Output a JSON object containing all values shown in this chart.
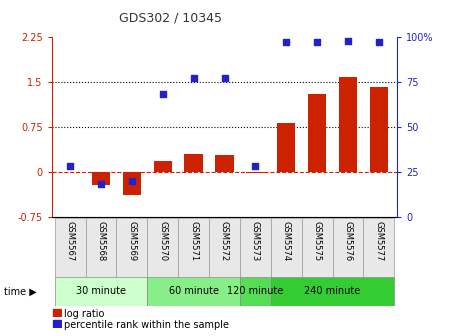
{
  "title": "GDS302 / 10345",
  "samples": [
    "GSM5567",
    "GSM5568",
    "GSM5569",
    "GSM5570",
    "GSM5571",
    "GSM5572",
    "GSM5573",
    "GSM5574",
    "GSM5575",
    "GSM5576",
    "GSM5577"
  ],
  "log_ratio": [
    0.0,
    -0.22,
    -0.38,
    0.18,
    0.3,
    0.28,
    -0.02,
    0.82,
    1.3,
    1.58,
    1.42
  ],
  "percentile": [
    28,
    18,
    20,
    68,
    77,
    77,
    28,
    97,
    97,
    98,
    97
  ],
  "ylim_left": [
    -0.75,
    2.25
  ],
  "ylim_right": [
    0,
    100
  ],
  "yticks_left": [
    -0.75,
    0.0,
    0.75,
    1.5,
    2.25
  ],
  "yticks_right": [
    0,
    25,
    50,
    75,
    100
  ],
  "dotted_lines": [
    0.75,
    1.5
  ],
  "bar_color": "#cc2200",
  "dot_color": "#2222cc",
  "groups": [
    {
      "label": "30 minute",
      "start": 0,
      "end": 3,
      "color": "#ccffcc"
    },
    {
      "label": "60 minute",
      "start": 3,
      "end": 6,
      "color": "#88ee88"
    },
    {
      "label": "120 minute",
      "start": 6,
      "end": 7,
      "color": "#55dd55"
    },
    {
      "label": "240 minute",
      "start": 7,
      "end": 11,
      "color": "#33cc33"
    }
  ],
  "time_label": "time",
  "legend_bar": "log ratio",
  "legend_dot": "percentile rank within the sample",
  "title_color": "#333333",
  "left_axis_color": "#cc2200",
  "right_axis_color": "#2222cc",
  "bar_width": 0.6,
  "dot_size": 22,
  "bg_color": "#ffffff"
}
